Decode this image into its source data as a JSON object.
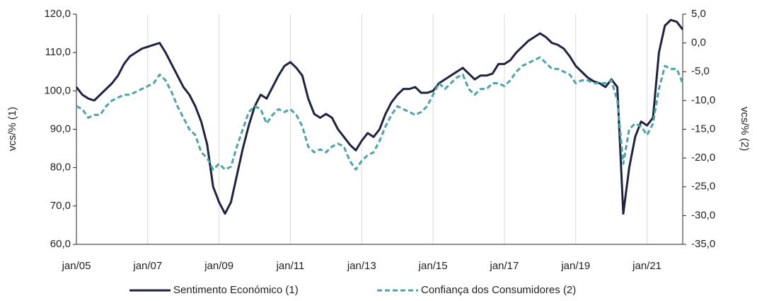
{
  "chart_data": {
    "type": "line",
    "y_label": "vcs/% (1)",
    "y2_label": "vcs/% (2)",
    "categories": [
      "jan/05",
      null,
      null,
      null,
      null,
      null,
      null,
      null,
      null,
      null,
      null,
      null,
      "jan/07",
      null,
      null,
      null,
      null,
      null,
      null,
      null,
      null,
      null,
      null,
      null,
      "jan/09",
      null,
      null,
      null,
      null,
      null,
      null,
      null,
      null,
      null,
      null,
      null,
      "jan/11",
      null,
      null,
      null,
      null,
      null,
      null,
      null,
      null,
      null,
      null,
      null,
      "jan/13",
      null,
      null,
      null,
      null,
      null,
      null,
      null,
      null,
      null,
      null,
      null,
      "jan/15",
      null,
      null,
      null,
      null,
      null,
      null,
      null,
      null,
      null,
      null,
      null,
      "jan/17",
      null,
      null,
      null,
      null,
      null,
      null,
      null,
      null,
      null,
      null,
      null,
      "jan/19",
      null,
      null,
      null,
      null,
      null,
      null,
      null,
      null,
      null,
      null,
      null,
      "jan/21",
      null,
      null,
      null,
      null,
      null,
      null
    ],
    "series": [
      {
        "name": "Sentimento Económico (1)",
        "color": "#1f2340",
        "dash": false,
        "values": [
          101,
          99,
          98,
          97.5,
          99,
          100.5,
          102,
          104,
          107,
          109,
          110,
          111,
          111.5,
          112,
          112.5,
          110,
          107,
          104,
          101,
          99,
          96,
          92,
          86,
          75,
          71,
          68,
          71,
          78,
          85,
          91,
          96,
          99,
          98,
          101,
          104,
          106.5,
          107.5,
          106,
          104,
          98,
          94,
          93,
          94,
          93,
          90,
          88,
          86,
          84.5,
          87,
          89,
          88,
          90,
          94,
          97,
          99,
          100.5,
          100.5,
          101,
          99.5,
          99.5,
          100,
          102,
          103,
          104,
          105,
          106,
          104.5,
          103,
          104,
          104,
          104.5,
          107,
          107,
          108,
          110,
          111.5,
          113,
          114,
          115,
          114,
          112.5,
          112,
          111,
          109,
          106.5,
          105,
          103.5,
          102.5,
          102,
          101,
          103,
          101,
          68,
          80,
          88,
          92,
          91,
          93,
          110,
          117,
          118.5,
          118,
          116
        ]
      },
      {
        "name": "Confiança dos Consumidores (2)",
        "color": "#4fa3a8",
        "dash": true,
        "axis": "y2",
        "values": [
          -11,
          -11.5,
          -13,
          -12.5,
          -12.5,
          -11,
          -10,
          -9.5,
          -9,
          -9,
          -8.5,
          -8,
          -7.5,
          -7,
          -5.5,
          -6.5,
          -8.5,
          -11,
          -13,
          -15,
          -16,
          -19,
          -20,
          -22,
          -21,
          -22,
          -21.5,
          -18,
          -15,
          -12,
          -11,
          -11.5,
          -14,
          -12.5,
          -11.5,
          -12,
          -11.5,
          -12.5,
          -14.5,
          -18,
          -19,
          -18.5,
          -19,
          -18,
          -17.5,
          -18,
          -20.5,
          -22,
          -20.5,
          -19.5,
          -19,
          -17,
          -14.5,
          -12.5,
          -11,
          -11.5,
          -12,
          -12.5,
          -12,
          -11,
          -9,
          -7,
          -8,
          -7,
          -6,
          -5.5,
          -8,
          -9,
          -8,
          -8,
          -7,
          -7,
          -7.5,
          -6.5,
          -5,
          -4,
          -3.5,
          -3,
          -2.5,
          -3.5,
          -4.5,
          -4.5,
          -5,
          -5.5,
          -7,
          -6.5,
          -6.5,
          -7,
          -7,
          -7,
          -6.5,
          -10,
          -21,
          -15,
          -14,
          -14.5,
          -16,
          -14,
          -8,
          -4,
          -4.5,
          -4.5,
          -7
        ]
      }
    ],
    "ylim": [
      60,
      120
    ],
    "yticks": [
      {
        "value": 60,
        "label": "60,0"
      },
      {
        "value": 70,
        "label": "70,0"
      },
      {
        "value": 80,
        "label": "80,0"
      },
      {
        "value": 90,
        "label": "90,0"
      },
      {
        "value": 100,
        "label": "100,0"
      },
      {
        "value": 110,
        "label": "110,0"
      },
      {
        "value": 120,
        "label": "120,0"
      }
    ],
    "y2lim": [
      -35,
      5
    ],
    "y2ticks": [
      {
        "value": -35,
        "label": "-35,0"
      },
      {
        "value": -30,
        "label": "-30,0"
      },
      {
        "value": -25,
        "label": "-25,0"
      },
      {
        "value": -20,
        "label": "-20,0"
      },
      {
        "value": -15,
        "label": "-15,0"
      },
      {
        "value": -10,
        "label": "-10,0"
      },
      {
        "value": -5,
        "label": "-5,0"
      },
      {
        "value": 0,
        "label": "0,0"
      },
      {
        "value": 5,
        "label": "5,0"
      }
    ],
    "grid": "x",
    "legend": "bottom"
  }
}
